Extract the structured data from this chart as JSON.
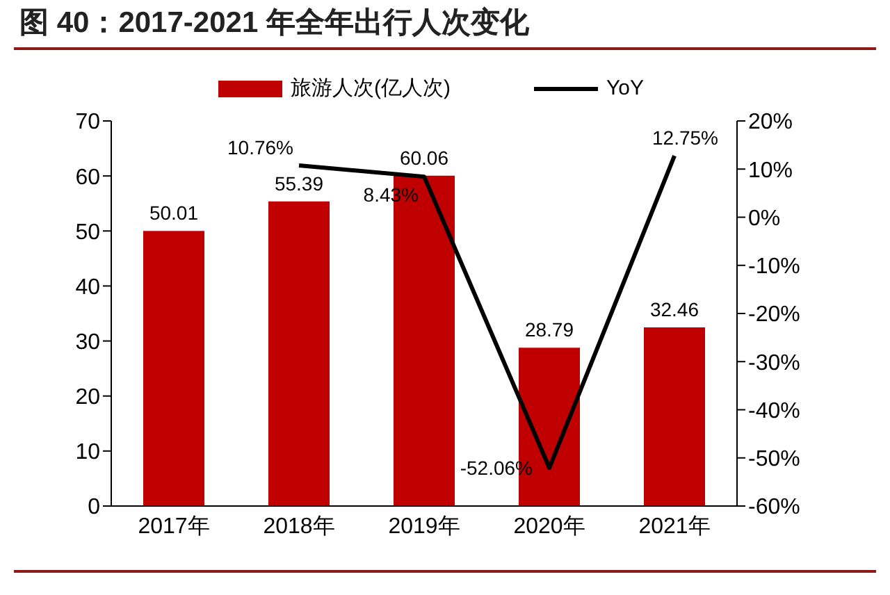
{
  "chart_data": {
    "type": "line",
    "title": "图 40：2017-2021 年全年出行人次变化",
    "categories": [
      "2017年",
      "2018年",
      "2019年",
      "2020年",
      "2021年"
    ],
    "series": [
      {
        "name": "旅游人次(亿人次)",
        "type": "bar",
        "color": "#c00000",
        "values": [
          50.01,
          55.39,
          60.06,
          28.79,
          32.46
        ],
        "value_labels": [
          "50.01",
          "55.39",
          "60.06",
          "28.79",
          "32.46"
        ]
      },
      {
        "name": "YoY",
        "axis": "y2",
        "color": "#000000",
        "values": [
          null,
          10.76,
          8.43,
          -52.06,
          12.75
        ],
        "value_labels": [
          null,
          "10.76%",
          "8.43%",
          "-52.06%",
          "12.75%"
        ]
      }
    ],
    "ylim": [
      0,
      70
    ],
    "yticks": [
      0,
      10,
      20,
      30,
      40,
      50,
      60,
      70
    ],
    "y2lim": [
      -60,
      20
    ],
    "y2ticks": [
      {
        "value": -60,
        "label": "-60%"
      },
      {
        "value": -50,
        "label": "-50%"
      },
      {
        "value": -40,
        "label": "-40%"
      },
      {
        "value": -30,
        "label": "-30%"
      },
      {
        "value": -20,
        "label": "-20%"
      },
      {
        "value": -10,
        "label": "-10%"
      },
      {
        "value": 0,
        "label": "0%"
      },
      {
        "value": 10,
        "label": "10%"
      },
      {
        "value": 20,
        "label": "20%"
      }
    ],
    "legend": "top",
    "grid": false,
    "marker": "none",
    "line_style": "solid"
  }
}
